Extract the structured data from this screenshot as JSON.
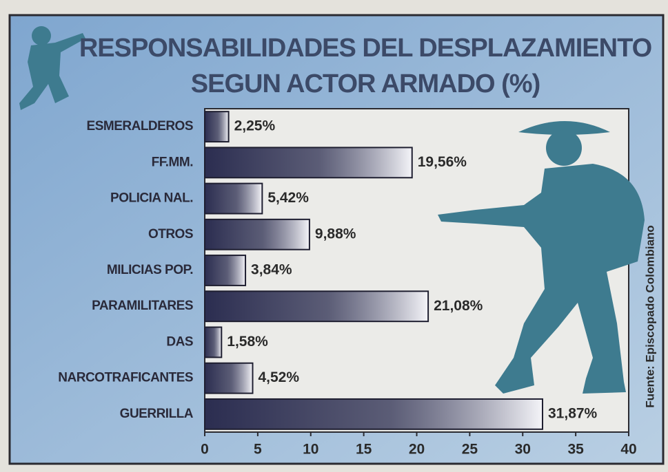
{
  "chart_data": {
    "type": "bar",
    "orientation": "horizontal",
    "title": [
      "RESPONSABILIDADES DEL DESPLAZAMIENTO",
      "SEGUN ACTOR ARMADO (%)"
    ],
    "categories": [
      "ESMERALDEROS",
      "FF.MM.",
      "POLICIA NAL.",
      "OTROS",
      "MILICIAS POP.",
      "PARAMILITARES",
      "DAS",
      "NARCOTRAFICANTES",
      "GUERRILLA"
    ],
    "values": [
      2.25,
      19.56,
      5.42,
      9.88,
      3.84,
      21.08,
      1.58,
      4.52,
      31.87
    ],
    "value_labels": [
      "2,25%",
      "19,56%",
      "5,42%",
      "9,88%",
      "3,84%",
      "21,08%",
      "1,58%",
      "4,52%",
      "31,87%"
    ],
    "color": "#2b2d50",
    "xlim": [
      0,
      40
    ],
    "xticks": [
      0,
      5,
      10,
      15,
      20,
      25,
      30,
      35,
      40
    ],
    "source": "Fuente: Episcopado Colombiano"
  }
}
